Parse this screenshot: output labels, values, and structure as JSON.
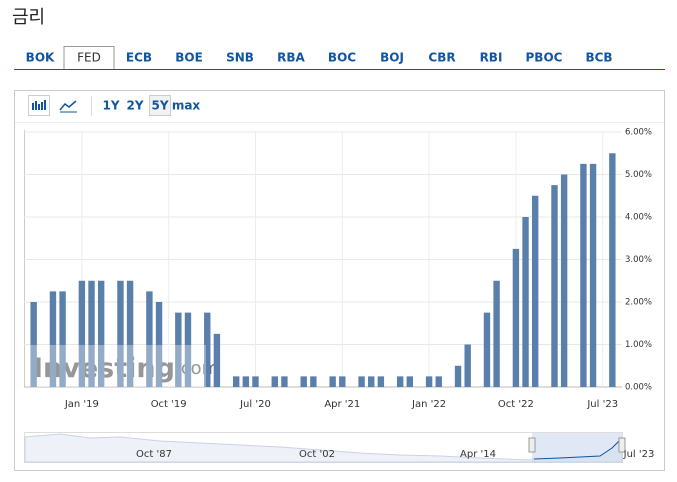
{
  "page_title": "금리",
  "tabs": [
    "BOK",
    "FED",
    "ECB",
    "BOE",
    "SNB",
    "RBA",
    "BOC",
    "BOJ",
    "CBR",
    "RBI",
    "PBOC",
    "BCB"
  ],
  "active_tab": 1,
  "range_buttons": [
    "1Y",
    "2Y",
    "5Y",
    "max"
  ],
  "active_range": 2,
  "watermark": {
    "brand": "Investing",
    "suffix": ".com"
  },
  "navigator_labels": [
    "Oct '87",
    "Oct '02",
    "Apr '14",
    "Jul '23"
  ],
  "chart_data": {
    "type": "bar",
    "color": "#5b7fab",
    "x": [
      "2018-08",
      "2018-10",
      "2018-11",
      "2019-01",
      "2019-02",
      "2019-03",
      "2019-05",
      "2019-06",
      "2019-08",
      "2019-09",
      "2019-11",
      "2019-12",
      "2020-02",
      "2020-03",
      "2020-05",
      "2020-06",
      "2020-07",
      "2020-09",
      "2020-10",
      "2020-12",
      "2021-01",
      "2021-03",
      "2021-04",
      "2021-06",
      "2021-07",
      "2021-08",
      "2021-10",
      "2021-11",
      "2022-01",
      "2022-02",
      "2022-04",
      "2022-05",
      "2022-07",
      "2022-08",
      "2022-10",
      "2022-11",
      "2022-12",
      "2023-02",
      "2023-03",
      "2023-05",
      "2023-06",
      "2023-08"
    ],
    "values": [
      2.0,
      2.25,
      2.25,
      2.5,
      2.5,
      2.5,
      2.5,
      2.5,
      2.25,
      2.0,
      1.75,
      1.75,
      1.75,
      1.25,
      0.25,
      0.25,
      0.25,
      0.25,
      0.25,
      0.25,
      0.25,
      0.25,
      0.25,
      0.25,
      0.25,
      0.25,
      0.25,
      0.25,
      0.25,
      0.25,
      0.5,
      1.0,
      1.75,
      2.5,
      3.25,
      4.0,
      4.5,
      4.75,
      5.0,
      5.25,
      5.25,
      5.5
    ],
    "xlim": [
      "2018-07",
      "2023-09"
    ],
    "xticks": [
      {
        "value": "2019-01",
        "label": "Jan '19"
      },
      {
        "value": "2019-10",
        "label": "Oct '19"
      },
      {
        "value": "2020-07",
        "label": "Jul '20"
      },
      {
        "value": "2021-04",
        "label": "Apr '21"
      },
      {
        "value": "2022-01",
        "label": "Jan '22"
      },
      {
        "value": "2022-10",
        "label": "Oct '22"
      },
      {
        "value": "2023-07",
        "label": "Jul '23"
      }
    ],
    "ylim": [
      0,
      6
    ],
    "yticks": [
      {
        "value": 0,
        "label": "0.00%"
      },
      {
        "value": 1,
        "label": "1.00%"
      },
      {
        "value": 2,
        "label": "2.00%"
      },
      {
        "value": 3,
        "label": "3.00%"
      },
      {
        "value": 4,
        "label": "4.00%"
      },
      {
        "value": 5,
        "label": "5.00%"
      },
      {
        "value": 6,
        "label": "6.00%"
      }
    ],
    "grid": true
  }
}
